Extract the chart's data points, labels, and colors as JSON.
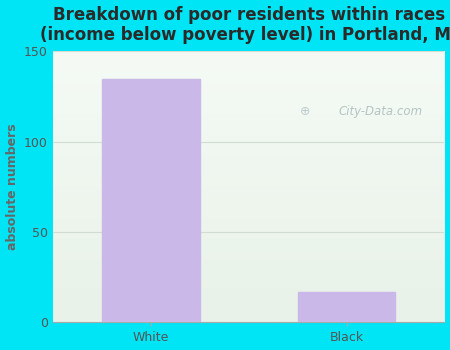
{
  "categories": [
    "White",
    "Black"
  ],
  "values": [
    135,
    17
  ],
  "bar_color": "#c9b8e8",
  "bar_edgecolor": "#c9b8e8",
  "title": "Breakdown of poor residents within races\n(income below poverty level) in Portland, MI",
  "ylabel": "absolute numbers",
  "ylim": [
    0,
    150
  ],
  "yticks": [
    0,
    50,
    100,
    150
  ],
  "outer_bg_color": "#00e5f5",
  "plot_bg_color": "#eef5ee",
  "grid_color": "#d0ddd0",
  "title_fontsize": 12,
  "title_color": "#2a2a2a",
  "ylabel_fontsize": 9,
  "ylabel_color": "#666666",
  "tick_fontsize": 9,
  "tick_color": "#555555",
  "watermark_text": "City-Data.com",
  "watermark_color": "#aabcbc"
}
